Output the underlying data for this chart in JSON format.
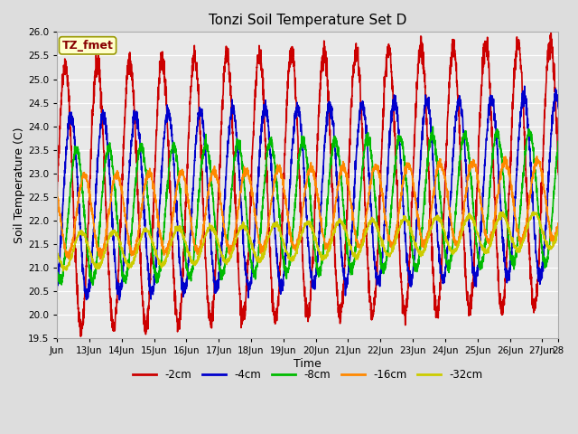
{
  "title": "Tonzi Soil Temperature Set D",
  "xlabel": "Time",
  "ylabel": "Soil Temperature (C)",
  "ylim": [
    19.5,
    26.0
  ],
  "series": {
    "-2cm": {
      "color": "#cc0000",
      "lw": 1.2,
      "amp": 2.8,
      "base": 22.5,
      "phase_lag": 0.0,
      "noise": 0.12
    },
    "-4cm": {
      "color": "#0000cc",
      "lw": 1.2,
      "amp": 1.9,
      "base": 22.3,
      "phase_lag": 0.18,
      "noise": 0.08
    },
    "-8cm": {
      "color": "#00bb00",
      "lw": 1.2,
      "amp": 1.4,
      "base": 22.1,
      "phase_lag": 0.35,
      "noise": 0.06
    },
    "-16cm": {
      "color": "#ff8800",
      "lw": 1.2,
      "amp": 0.85,
      "base": 22.1,
      "phase_lag": 0.6,
      "noise": 0.05
    },
    "-32cm": {
      "color": "#cccc00",
      "lw": 1.2,
      "amp": 0.38,
      "base": 21.35,
      "phase_lag": 1.5,
      "noise": 0.03
    }
  },
  "legend_labels": [
    "-2cm",
    "-4cm",
    "-8cm",
    "-16cm",
    "-32cm"
  ],
  "legend_colors": [
    "#cc0000",
    "#0000cc",
    "#00bb00",
    "#ff8800",
    "#cccc00"
  ],
  "bg_color": "#dddddd",
  "plot_bg": "#e8e8e8",
  "annotation_text": "TZ_fmet",
  "annotation_bg": "#ffffcc",
  "annotation_border": "#999900",
  "annotation_text_color": "#880000",
  "xtick_labels": [
    "Jun",
    "13Jun",
    "14Jun",
    "15Jun",
    "16Jun",
    "17Jun",
    "18Jun",
    "19Jun",
    "20Jun",
    "21Jun",
    "22Jun",
    "23Jun",
    "24Jun",
    "25Jun",
    "26Jun",
    "27Jun",
    "28"
  ],
  "xtick_positions": [
    0,
    1,
    2,
    3,
    4,
    5,
    6,
    7,
    8,
    9,
    10,
    11,
    12,
    13,
    14,
    15,
    15.5
  ],
  "ytick_positions": [
    19.5,
    20.0,
    20.5,
    21.0,
    21.5,
    22.0,
    22.5,
    23.0,
    23.5,
    24.0,
    24.5,
    25.0,
    25.5,
    26.0
  ],
  "figsize": [
    6.4,
    4.8
  ],
  "dpi": 100
}
